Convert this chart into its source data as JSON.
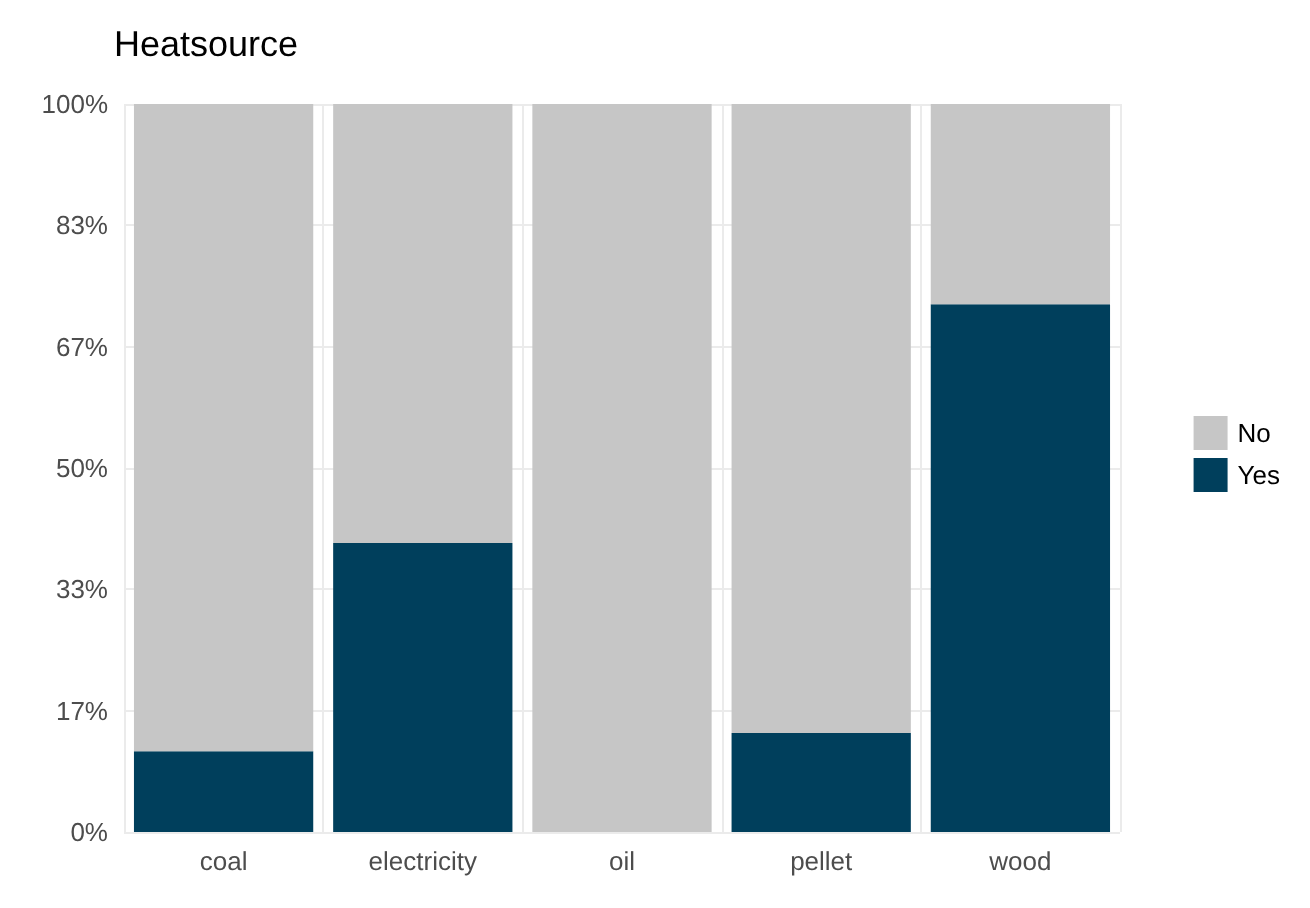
{
  "chart_data": {
    "type": "bar",
    "title": "Heatsource",
    "categories": [
      "coal",
      "electricity",
      "oil",
      "pellet",
      "wood"
    ],
    "stacked": true,
    "series": [
      {
        "name": "Yes",
        "color": "#003f5c",
        "values": [
          11.1,
          39.7,
          0,
          13.6,
          72.5
        ]
      },
      {
        "name": "No",
        "color": "#c6c6c6",
        "values": [
          88.9,
          60.3,
          100,
          86.4,
          27.5
        ]
      }
    ],
    "ylim": [
      0,
      100
    ],
    "yticks": [
      {
        "value": 0,
        "label": "0%"
      },
      {
        "value": 16.67,
        "label": "17%"
      },
      {
        "value": 33.33,
        "label": "33%"
      },
      {
        "value": 50,
        "label": "50%"
      },
      {
        "value": 66.67,
        "label": "67%"
      },
      {
        "value": 83.33,
        "label": "83%"
      },
      {
        "value": 100,
        "label": "100%"
      }
    ],
    "grid": true,
    "legend": "right"
  }
}
